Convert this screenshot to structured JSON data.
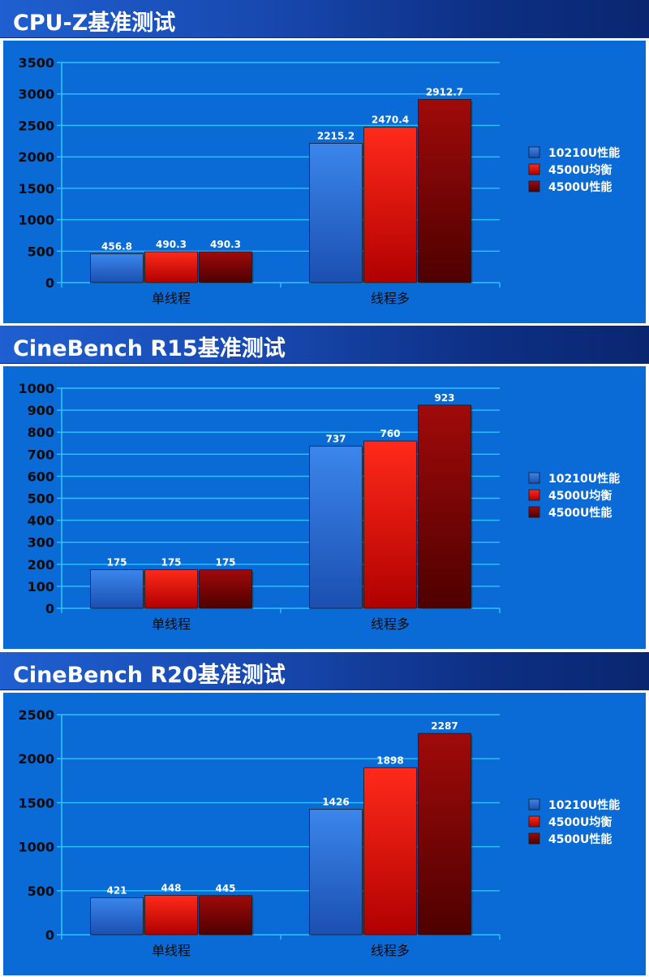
{
  "colors": {
    "header_start": "#1f5fd0",
    "header_end": "#0a2670",
    "panel_bg": "#0a6bd6",
    "grid_line": "#2ec4ff",
    "series": [
      "#2a6fd8",
      "#e60000",
      "#8a0000"
    ]
  },
  "chart_data": [
    {
      "type": "bar",
      "title": "CPU-Z基准测试",
      "categories": [
        "单线程",
        "线程多"
      ],
      "series": [
        {
          "name": "10210U性能",
          "values": [
            456.8,
            2215.2
          ],
          "labels": [
            "456.8",
            "2215.2"
          ]
        },
        {
          "name": "4500U均衡",
          "values": [
            490.3,
            2470.4
          ],
          "labels": [
            "490.3",
            "2470.4"
          ]
        },
        {
          "name": "4500U性能",
          "values": [
            490.3,
            2912.7
          ],
          "labels": [
            "490.3",
            "2912.7"
          ]
        }
      ],
      "ylim": [
        0,
        3500
      ],
      "yticks": [
        0,
        500,
        1000,
        1500,
        2000,
        2500,
        3000,
        3500
      ],
      "grid": true,
      "legend": "right"
    },
    {
      "type": "bar",
      "title": "CineBench R15基准测试",
      "categories": [
        "单线程",
        "线程多"
      ],
      "series": [
        {
          "name": "10210U性能",
          "values": [
            175,
            737
          ],
          "labels": [
            "175",
            "737"
          ]
        },
        {
          "name": "4500U均衡",
          "values": [
            175,
            760
          ],
          "labels": [
            "175",
            "760"
          ]
        },
        {
          "name": "4500U性能",
          "values": [
            175,
            923
          ],
          "labels": [
            "175",
            "923"
          ]
        }
      ],
      "ylim": [
        0,
        1000
      ],
      "yticks": [
        0,
        100,
        200,
        300,
        400,
        500,
        600,
        700,
        800,
        900,
        1000
      ],
      "grid": true,
      "legend": "right"
    },
    {
      "type": "bar",
      "title": "CineBench R20基准测试",
      "categories": [
        "单线程",
        "线程多"
      ],
      "series": [
        {
          "name": "10210U性能",
          "values": [
            421,
            1426
          ],
          "labels": [
            "421",
            "1426"
          ]
        },
        {
          "name": "4500U均衡",
          "values": [
            448,
            1898
          ],
          "labels": [
            "448",
            "1898"
          ]
        },
        {
          "name": "4500U性能",
          "values": [
            445,
            2287
          ],
          "labels": [
            "445",
            "2287"
          ]
        }
      ],
      "ylim": [
        0,
        2500
      ],
      "yticks": [
        0,
        500,
        1000,
        1500,
        2000,
        2500
      ],
      "grid": true,
      "legend": "right"
    }
  ]
}
